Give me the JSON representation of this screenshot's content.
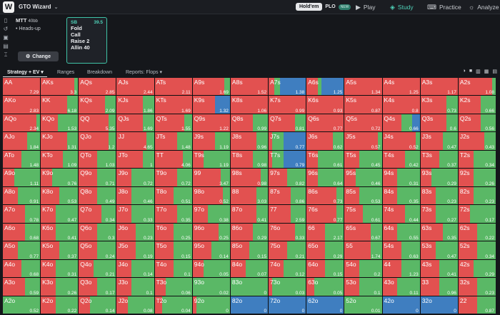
{
  "app": {
    "logo": "W",
    "name": "GTO Wizard"
  },
  "game_toggle": {
    "holdem": "Hold'em",
    "plo": "PLO",
    "new_badge": "NEW"
  },
  "nav": [
    {
      "label": "Play",
      "icon": "play-circle-icon"
    },
    {
      "label": "Study",
      "icon": "layers-icon",
      "active": true
    },
    {
      "label": "Practice",
      "icon": "gamepad-icon"
    },
    {
      "label": "Analyze",
      "icon": "bulb-icon"
    }
  ],
  "settings": {
    "format": "MTT",
    "stack": "40bb",
    "mode": "Heads-up",
    "change_label": "Change"
  },
  "action_card": {
    "position": "SB",
    "stack": "39.5",
    "actions": [
      "Fold",
      "Call",
      "Raise 2",
      "Allin 40"
    ]
  },
  "tabs": {
    "strategy": "Strategy + EV",
    "ranges": "Ranges",
    "breakdown": "Breakdown",
    "reports": "Reports: Flops"
  },
  "colors": {
    "raise": "#e25150",
    "call": "#5ab866",
    "fold": "#3f7ec0",
    "accent": "#4fd1b8"
  },
  "grid_note": "Each cell: hand, EV, green = share of call, red = share of raise, blue = share of fold (fractions of cell width).",
  "grid": [
    [
      [
        "AA",
        "7.29",
        0,
        0
      ],
      [
        "AKs",
        "3.3",
        0,
        0.1
      ],
      [
        "AQs",
        "2.85",
        0,
        0
      ],
      [
        "AJs",
        "2.44",
        0,
        0
      ],
      [
        "ATs",
        "2.11",
        0,
        0
      ],
      [
        "A9s",
        "1.69",
        0,
        0.15
      ],
      [
        "A8s",
        "1.52",
        0,
        0
      ],
      [
        "A7s",
        "1.38",
        0.7,
        0.15
      ],
      [
        "A6s",
        "1.25",
        0.6,
        0.1
      ],
      [
        "A5s",
        "1.34",
        0,
        0
      ],
      [
        "A4s",
        "1.25",
        0,
        0
      ],
      [
        "A3s",
        "1.17",
        0,
        0
      ],
      [
        "A2s",
        "1.08",
        0,
        0.1
      ]
    ],
    [
      [
        "AKo",
        "2.83",
        0,
        0
      ],
      [
        "KK",
        "6.18",
        0,
        0.3
      ],
      [
        "KQs",
        "2.09",
        0,
        0.3
      ],
      [
        "KJs",
        "1.86",
        0,
        0.3
      ],
      [
        "KTs",
        "1.69",
        0,
        0
      ],
      [
        "K9s",
        "1.32",
        0.4,
        0
      ],
      [
        "K8s",
        "1.06",
        0,
        0
      ],
      [
        "K7s",
        "0.99",
        0,
        0
      ],
      [
        "K6s",
        "0.93",
        0,
        0
      ],
      [
        "K5s",
        "0.87",
        0,
        0
      ],
      [
        "K4s",
        "0.8",
        0,
        0
      ],
      [
        "K3s",
        "0.73",
        0,
        0.3
      ],
      [
        "K2s",
        "0.66",
        0,
        0.4
      ]
    ],
    [
      [
        "AQo",
        "2.34",
        0,
        0.1
      ],
      [
        "KQo",
        "1.53",
        0,
        0.55
      ],
      [
        "QQ",
        "5.35",
        0,
        0.2
      ],
      [
        "QJs",
        "1.69",
        0,
        0.3
      ],
      [
        "QTs",
        "1.55",
        0,
        0.2
      ],
      [
        "Q9s",
        "1.22",
        0,
        0
      ],
      [
        "Q8s",
        "0.99",
        0,
        0.4
      ],
      [
        "Q7s",
        "0.81",
        0,
        0.3
      ],
      [
        "Q6s",
        "0.77",
        0,
        0
      ],
      [
        "Q5s",
        "0.72",
        0,
        0
      ],
      [
        "Q4s",
        "0.66",
        0.2,
        0.3
      ],
      [
        "Q3s",
        "0.6",
        0,
        0.3
      ],
      [
        "Q2s",
        "0.56",
        0,
        0.4
      ]
    ],
    [
      [
        "AJo",
        "1.84",
        0,
        0.35
      ],
      [
        "KJo",
        "1.31",
        0,
        0.3
      ],
      [
        "QJo",
        "1.2",
        0,
        0.2
      ],
      [
        "JJ",
        "4.65",
        0,
        0.2
      ],
      [
        "JTs",
        "1.48",
        0,
        0.4
      ],
      [
        "J9s",
        "1.19",
        0,
        0.4
      ],
      [
        "J8s",
        "0.96",
        0,
        0.3
      ],
      [
        "J7s",
        "0.77",
        0.6,
        0.3
      ],
      [
        "J6s",
        "0.62",
        0,
        0.3
      ],
      [
        "J5s",
        "0.57",
        0,
        0.1
      ],
      [
        "J4s",
        "0.52",
        0,
        0.1
      ],
      [
        "J3s",
        "0.47",
        0,
        0.4
      ],
      [
        "J2s",
        "0.43",
        0,
        0.3
      ]
    ],
    [
      [
        "ATo",
        "1.48",
        0,
        0.5
      ],
      [
        "KTo",
        "1.09",
        0,
        0.4
      ],
      [
        "QTo",
        "1.03",
        0,
        0.5
      ],
      [
        "JTo",
        "1",
        0,
        0.3
      ],
      [
        "TT",
        "4.06",
        0,
        0.25
      ],
      [
        "T9s",
        "1.19",
        0,
        0.7
      ],
      [
        "T8s",
        "0.98",
        0,
        0.4
      ],
      [
        "T7s",
        "0.79",
        0.6,
        0.3
      ],
      [
        "T6s",
        "0.61",
        0,
        0.7
      ],
      [
        "T5s",
        "0.45",
        0,
        0.6
      ],
      [
        "T4s",
        "0.42",
        0,
        0.4
      ],
      [
        "T3s",
        "0.37",
        0,
        0.5
      ],
      [
        "T2s",
        "0.34",
        0,
        0.6
      ]
    ],
    [
      [
        "A9o",
        "1.11",
        0,
        0.7
      ],
      [
        "K9o",
        "0.76",
        0,
        0.7
      ],
      [
        "Q9o",
        "0.71",
        0,
        0.5
      ],
      [
        "J9o",
        "0.72",
        0,
        0.6
      ],
      [
        "T9o",
        "0.72",
        0,
        0.4
      ],
      [
        "99",
        "3.47",
        0,
        0.25
      ],
      [
        "98s",
        "0.98",
        0,
        0.2
      ],
      [
        "97s",
        "0.82",
        0,
        0.5
      ],
      [
        "96s",
        "0.64",
        0,
        0.7
      ],
      [
        "95s",
        "0.46",
        0,
        0.7
      ],
      [
        "94s",
        "0.31",
        0,
        0.6
      ],
      [
        "93s",
        "0.29",
        0,
        0.7
      ],
      [
        "92s",
        "0.26",
        0,
        0.6
      ]
    ],
    [
      [
        "A8o",
        "0.91",
        0,
        0.6
      ],
      [
        "K8o",
        "0.53",
        0,
        0.5
      ],
      [
        "Q8o",
        "0.49",
        0,
        0.5
      ],
      [
        "J8o",
        "0.46",
        0,
        0.6
      ],
      [
        "T8o",
        "0.51",
        0,
        0.5
      ],
      [
        "98o",
        "0.52",
        0,
        0.2
      ],
      [
        "88",
        "3.03",
        0,
        0.3
      ],
      [
        "87s",
        "0.86",
        0,
        0.4
      ],
      [
        "86s",
        "0.73",
        0,
        0.2
      ],
      [
        "85s",
        "0.53",
        0,
        0.6
      ],
      [
        "84s",
        "0.35",
        0,
        0.6
      ],
      [
        "83s",
        "0.23",
        0,
        0.6
      ],
      [
        "82s",
        "0.23",
        0,
        0.6
      ]
    ],
    [
      [
        "A7o",
        "0.78",
        0,
        0.4
      ],
      [
        "K7o",
        "0.47",
        0,
        0.6
      ],
      [
        "Q7o",
        "0.34",
        0,
        0.4
      ],
      [
        "J7o",
        "0.33",
        0,
        0.6
      ],
      [
        "T7o",
        "0.35",
        0,
        0.4
      ],
      [
        "97o",
        "0.38",
        0,
        0.6
      ],
      [
        "87o",
        "0.41",
        0,
        0.3
      ],
      [
        "77",
        "2.59",
        0,
        0.4
      ],
      [
        "76s",
        "0.77",
        0,
        0.2
      ],
      [
        "75s",
        "0.61",
        0,
        0.5
      ],
      [
        "74s",
        "0.44",
        0,
        0.4
      ],
      [
        "73s",
        "0.27",
        0,
        0.6
      ],
      [
        "72s",
        "0.17",
        0,
        0.7
      ]
    ],
    [
      [
        "A6o",
        "0.68",
        0,
        0.4
      ],
      [
        "K6o",
        "0.41",
        0,
        0.6
      ],
      [
        "Q6o",
        "0.3",
        0,
        0.5
      ],
      [
        "J6o",
        "0.23",
        0,
        0.5
      ],
      [
        "T6o",
        "0.25",
        0,
        0.5
      ],
      [
        "96o",
        "0.25",
        0,
        0.3
      ],
      [
        "86o",
        "0.29",
        0,
        0.4
      ],
      [
        "76o",
        "0.33",
        0,
        0.3
      ],
      [
        "66",
        "2.17",
        0,
        0.5
      ],
      [
        "65s",
        "0.67",
        0,
        0.3
      ],
      [
        "64s",
        "0.55",
        0,
        0.6
      ],
      [
        "63s",
        "0.35",
        0,
        0.4
      ],
      [
        "62s",
        "0.22",
        0,
        0.5
      ]
    ],
    [
      [
        "A5o",
        "0.77",
        0,
        0.6
      ],
      [
        "K5o",
        "0.37",
        0,
        0.5
      ],
      [
        "Q5o",
        "0.24",
        0,
        0.5
      ],
      [
        "J5o",
        "0.19",
        0,
        0.5
      ],
      [
        "T5o",
        "0.15",
        0,
        0.5
      ],
      [
        "95o",
        "0.14",
        0,
        0.5
      ],
      [
        "85o",
        "0.15",
        0,
        0.5
      ],
      [
        "75o",
        "0.21",
        0,
        0.5
      ],
      [
        "65o",
        "0.29",
        0,
        0.5
      ],
      [
        "55",
        "1.74",
        0,
        0.3
      ],
      [
        "54s",
        "0.63",
        0,
        0.5
      ],
      [
        "53s",
        "0.47",
        0,
        0.6
      ],
      [
        "52s",
        "0.34",
        0,
        0.5
      ]
    ],
    [
      [
        "A4o",
        "0.68",
        0,
        0.5
      ],
      [
        "K4o",
        "0.31",
        0,
        0.6
      ],
      [
        "Q4o",
        "0.21",
        0,
        0.6
      ],
      [
        "J4o",
        "0.14",
        0,
        0.6
      ],
      [
        "T4o",
        "0.1",
        0,
        0.5
      ],
      [
        "94o",
        "0.05",
        0,
        0.7
      ],
      [
        "84o",
        "0.07",
        0,
        0.6
      ],
      [
        "74o",
        "0.12",
        0,
        0.6
      ],
      [
        "64o",
        "0.15",
        0,
        0.5
      ],
      [
        "54o",
        "0.2",
        0,
        0.6
      ],
      [
        "44",
        "1.23",
        0,
        0.5
      ],
      [
        "43s",
        "0.41",
        0,
        0.5
      ],
      [
        "42s",
        "0.29",
        0,
        0.6
      ]
    ],
    [
      [
        "A3o",
        "0.59",
        0,
        0.4
      ],
      [
        "K3o",
        "0.26",
        0,
        0.6
      ],
      [
        "Q3o",
        "0.17",
        0,
        0.5
      ],
      [
        "J3o",
        "0.1",
        0,
        0.6
      ],
      [
        "T3o",
        "0.06",
        0,
        0.7
      ],
      [
        "93o",
        "0.02",
        0,
        1
      ],
      [
        "83o",
        "0",
        0,
        1
      ],
      [
        "73o",
        "0.03",
        0,
        0.9
      ],
      [
        "63o",
        "0.05",
        0,
        0.8
      ],
      [
        "53o",
        "0.1",
        0,
        0.6
      ],
      [
        "43o",
        "0.11",
        0,
        0.6
      ],
      [
        "33",
        "0.96",
        0,
        0.5
      ],
      [
        "32s",
        "0.23",
        0,
        0.5
      ]
    ],
    [
      [
        "A2o",
        "0.52",
        0,
        1
      ],
      [
        "K2o",
        "0.22",
        0,
        0.6
      ],
      [
        "Q2o",
        "0.14",
        0,
        0.7
      ],
      [
        "J2o",
        "0.08",
        0,
        0.7
      ],
      [
        "T2o",
        "0.04",
        0,
        0.8
      ],
      [
        "92o",
        "0",
        0,
        0.9
      ],
      [
        "82o",
        "0",
        1,
        0
      ],
      [
        "72o",
        "0",
        1,
        0
      ],
      [
        "62o",
        "0",
        1,
        0
      ],
      [
        "52o",
        "0.01",
        0,
        1
      ],
      [
        "42o",
        "0",
        1,
        0
      ],
      [
        "32o",
        "0",
        1,
        0
      ],
      [
        "22",
        "0.87",
        0,
        0.5
      ]
    ]
  ]
}
